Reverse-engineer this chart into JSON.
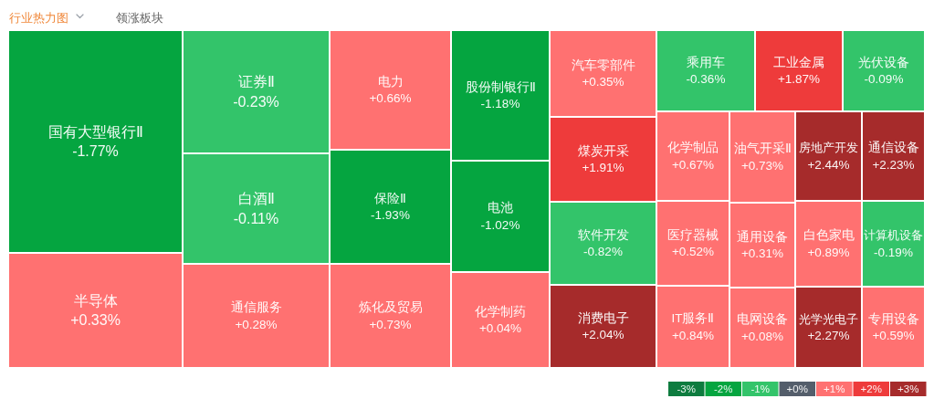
{
  "chart_data": [
    {
      "type": "other",
      "title": "行业热力图",
      "annotations": [
        "领涨板块"
      ],
      "categories": [
        "国有大型银行Ⅱ",
        "半导体",
        "证券Ⅱ",
        "白酒Ⅱ",
        "通信服务",
        "电力",
        "保险Ⅱ",
        "炼化及贸易",
        "股份制银行Ⅱ",
        "电池",
        "化学制药",
        "汽车零部件",
        "煤炭开采",
        "软件开发",
        "消费电子",
        "乘用车",
        "工业金属",
        "光伏设备",
        "化学制品",
        "医疗器械",
        "IT服务Ⅱ",
        "油气开采Ⅱ",
        "通用设备",
        "电网设备",
        "房地产开发",
        "白色家电",
        "光学光电子",
        "通信设备",
        "计算机设备",
        "专用设备"
      ],
      "values": [
        -1.77,
        0.33,
        -0.23,
        -0.11,
        0.28,
        0.66,
        -1.93,
        0.73,
        -1.18,
        -1.02,
        0.04,
        0.35,
        1.91,
        -0.82,
        2.04,
        -0.36,
        1.87,
        -0.09,
        0.67,
        0.52,
        0.84,
        0.73,
        0.31,
        0.08,
        2.44,
        0.89,
        2.27,
        2.23,
        -0.19,
        0.59
      ],
      "value_labels": [
        "-1.77%",
        "+0.33%",
        "-0.23%",
        "-0.11%",
        "+0.28%",
        "+0.66%",
        "-1.93%",
        "+0.73%",
        "-1.18%",
        "-1.02%",
        "+0.04%",
        "+0.35%",
        "+1.91%",
        "-0.82%",
        "+2.04%",
        "-0.36%",
        "+1.87%",
        "-0.09%",
        "+0.67%",
        "+0.52%",
        "+0.84%",
        "+0.73%",
        "+0.31%",
        "+0.08%",
        "+2.44%",
        "+0.89%",
        "+2.27%",
        "+2.23%",
        "-0.19%",
        "+0.59%"
      ]
    },
    {
      "type": "heatmap",
      "categories": [
        null,
        null,
        null,
        null,
        null,
        null,
        null
      ],
      "y_categories": [
        null
      ],
      "cells": [
        [
          -3,
          -2,
          -1,
          0,
          1,
          2,
          3
        ]
      ],
      "cell_labels": [
        [
          "-3%",
          "-2%",
          "-1%",
          "+0%",
          "+1%",
          "+2%",
          "+3%"
        ]
      ],
      "colors": [
        "#0e7c3f",
        "#05a540",
        "#33c46a",
        "#545e6b",
        "#ff7171",
        "#ee3b3b",
        "#a62b2b"
      ]
    }
  ]
}
